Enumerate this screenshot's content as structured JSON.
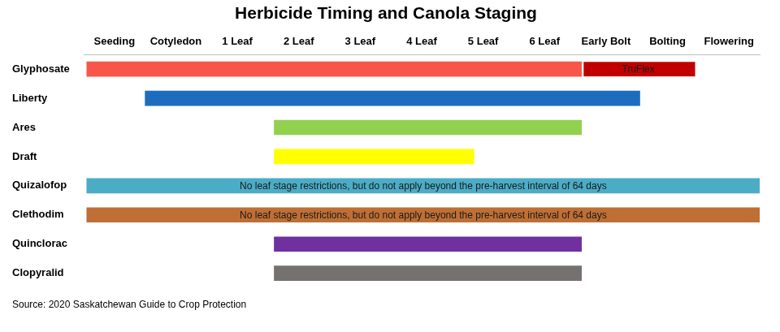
{
  "chart_data": {
    "type": "bar",
    "orientation": "horizontal",
    "title": "Herbicide Timing and Canola Staging",
    "source": "Source: 2020 Saskatchewan Guide to Crop Protection",
    "categories": [
      "Glyphosate",
      "Liberty",
      "Ares",
      "Draft",
      "Quizalofop",
      "Clethodim",
      "Quinclorac",
      "Clopyralid"
    ],
    "xlim": [
      -0.5,
      10.5
    ],
    "xticks": [
      {
        "value": 0,
        "label": "Seeding"
      },
      {
        "value": 1,
        "label": "Cotyledon"
      },
      {
        "value": 2,
        "label": "1 Leaf"
      },
      {
        "value": 3,
        "label": "2 Leaf"
      },
      {
        "value": 4,
        "label": "3 Leaf"
      },
      {
        "value": 5,
        "label": "4 Leaf"
      },
      {
        "value": 6,
        "label": "5 Leaf"
      },
      {
        "value": 7,
        "label": "6 Leaf"
      },
      {
        "value": 8,
        "label": "Early Bolt"
      },
      {
        "value": 9,
        "label": "Bolting"
      },
      {
        "value": 10,
        "label": "Flowering"
      }
    ],
    "grid": false,
    "series": [
      {
        "colors": [
          "#f9564a",
          "#1c6dc0",
          "#92d050",
          "#ffff00",
          "#4bacc6",
          "#bf6f35",
          "#7030a0",
          "#767171"
        ],
        "values": [
          [
            -0.45,
            7.6
          ],
          [
            0.5,
            8.55
          ],
          [
            2.6,
            7.6
          ],
          [
            2.6,
            5.85
          ],
          [
            -0.45,
            10.5
          ],
          [
            -0.45,
            10.5
          ],
          [
            2.6,
            7.6
          ],
          [
            2.6,
            7.6
          ]
        ],
        "labels": [
          null,
          null,
          null,
          null,
          "No leaf stage restrictions, but do not apply beyond the pre-harvest interval of 64 days",
          "No leaf stage restrictions, but do not apply beyond the pre-harvest interval of 64 days",
          null,
          null
        ]
      },
      {
        "name": "TruFlex",
        "color": "#c00000",
        "values": [
          [
            7.6,
            9.45
          ],
          null,
          null,
          null,
          null,
          null,
          null,
          null
        ]
      }
    ]
  }
}
